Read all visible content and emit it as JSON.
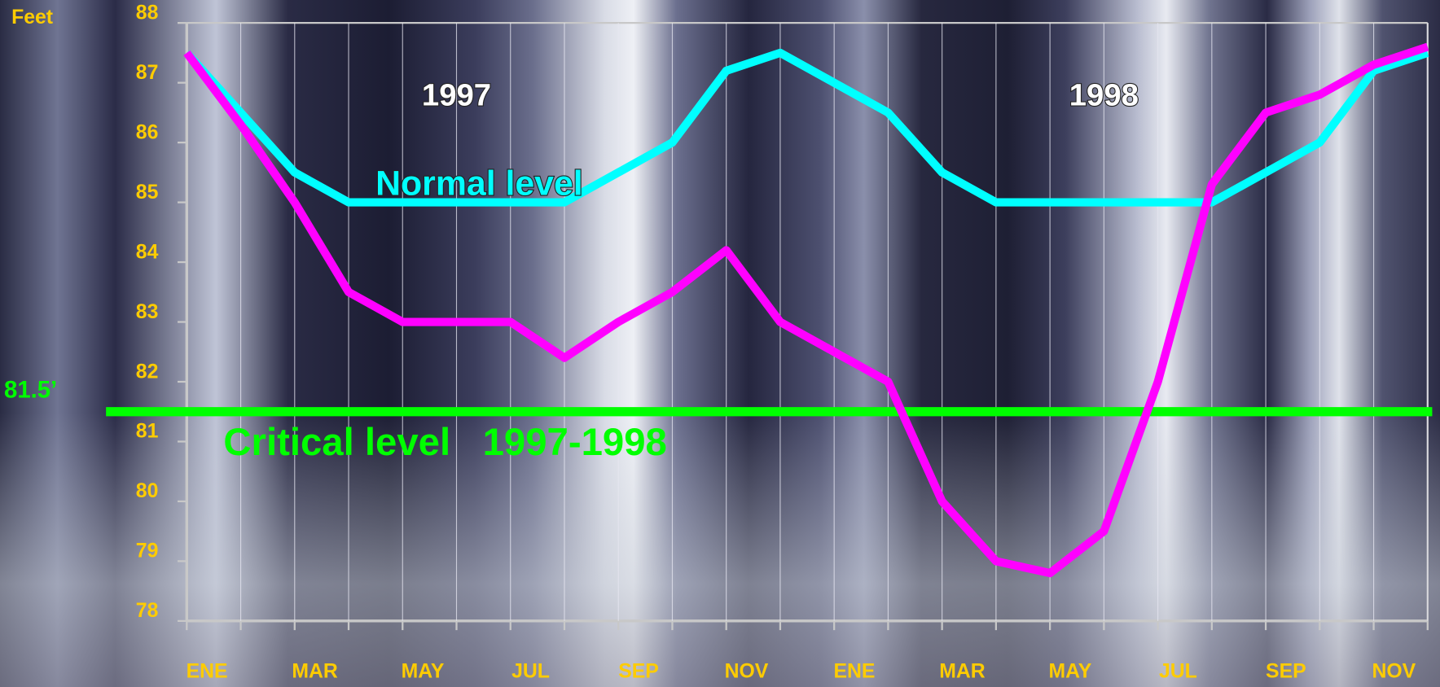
{
  "chart_data": {
    "type": "line",
    "y_axis_label": "Feet",
    "year_labels": [
      "1997",
      "1998"
    ],
    "categories": [
      "ENE",
      null,
      "MAR",
      null,
      "MAY",
      null,
      "JUL",
      null,
      "SEP",
      null,
      "NOV",
      null,
      "ENE",
      null,
      "MAR",
      null,
      "MAY",
      null,
      "JUL",
      null,
      "SEP",
      null,
      "NOV",
      null
    ],
    "series": [
      {
        "name": "Normal level",
        "color": "#00ffff",
        "values": [
          87.5,
          86.5,
          85.5,
          85,
          85,
          85,
          85,
          85,
          85.5,
          86,
          87.2,
          87.5,
          87,
          86.5,
          85.5,
          85,
          85,
          85,
          85,
          85,
          85.5,
          86,
          87.2,
          87.5
        ]
      },
      {
        "color": "#ff00ff",
        "values": [
          87.5,
          86.3,
          85,
          83.5,
          83,
          83,
          83,
          82.4,
          83,
          83.5,
          84.2,
          83,
          82.5,
          82,
          80,
          79,
          78.8,
          79.5,
          82,
          85.3,
          86.5,
          86.8,
          87.3,
          87.6
        ]
      }
    ],
    "critical": {
      "label": "Critical level   1997-1998",
      "value": 81.5,
      "value_label": "81.5’",
      "color": "#00ff00"
    },
    "ylim": [
      78,
      88
    ],
    "yticks": [
      78,
      79,
      80,
      81,
      82,
      83,
      84,
      85,
      86,
      87,
      88
    ],
    "grid": true
  }
}
